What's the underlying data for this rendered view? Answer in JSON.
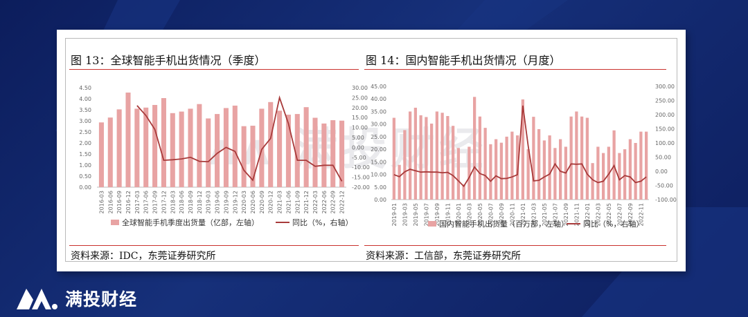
{
  "panel_left": {
    "title": "图 13：全球智能手机出货情况（季度）",
    "source": "资料来源：IDC，东莞证券研究所"
  },
  "panel_right": {
    "title": "图 14：国内智能手机出货情况（月度）",
    "source": "资料来源：工信部，东莞证券研究所"
  },
  "brand": {
    "name": "满投财经",
    "logo_icon": "mountain-m-logo-icon"
  },
  "colors": {
    "bar": "#e8a3a3",
    "line": "#a83a3a",
    "accent_rule": "#c9302c",
    "background": "#122a6f"
  },
  "chart_data": [
    {
      "type": "bar",
      "categories": [
        "2016-03",
        "2016-06",
        "2016-09",
        "2016-12",
        "2017-03",
        "2017-06",
        "2017-09",
        "2017-12",
        "2018-03",
        "2018-06",
        "2018-09",
        "2018-12",
        "2019-03",
        "2019-06",
        "2019-09",
        "2019-12",
        "2020-03",
        "2020-06",
        "2020-09",
        "2020-12",
        "2021-03",
        "2021-06",
        "2021-09",
        "2021-12",
        "2022-03",
        "2022-06",
        "2022-09",
        "2022-12"
      ],
      "x_tick_labels": [
        "2016-03",
        "2016-06",
        "2016-09",
        "2016-12",
        "2017-03",
        "2017-06",
        "2017-09",
        "2017-12",
        "2018-03",
        "2018-06",
        "2018-09",
        "2018-12",
        "2019-03",
        "2019-06",
        "2019-09",
        "2019-12",
        "2020-03",
        "2020-06",
        "2020-09",
        "2020-12",
        "2021-03",
        "2021-06",
        "2021-09",
        "2021-12",
        "2022-03",
        "2022-06",
        "2022-09",
        "2022-12"
      ],
      "series": [
        {
          "name": "全球智能手机季度出货量（亿部，左轴）",
          "type": "bar",
          "axis": "left",
          "values": [
            2.93,
            3.15,
            3.52,
            4.28,
            3.55,
            3.6,
            3.72,
            4.03,
            3.35,
            3.42,
            3.55,
            3.76,
            3.11,
            3.31,
            3.58,
            3.69,
            2.76,
            2.78,
            3.55,
            3.85,
            3.46,
            3.28,
            3.31,
            3.62,
            3.14,
            2.88,
            3.03,
            3.01
          ]
        },
        {
          "name": "同比（%，右轴）",
          "type": "line",
          "axis": "right",
          "values": [
            null,
            null,
            null,
            null,
            21.0,
            16.0,
            9.0,
            -6.5,
            -6.2,
            -5.8,
            -5.0,
            -7.0,
            -7.2,
            -3.0,
            0.0,
            -2.0,
            -11.5,
            -16.5,
            -1.0,
            4.5,
            25.0,
            12.0,
            -6.5,
            -6.5,
            -9.5,
            -9.0,
            -9.0,
            -17.0
          ]
        }
      ],
      "left_axis": {
        "ylim": [
          0,
          4.5
        ],
        "ticks": [
          "0.00",
          "0.50",
          "1.00",
          "1.50",
          "2.00",
          "2.50",
          "3.00",
          "3.50",
          "4.00",
          "4.50"
        ]
      },
      "right_axis": {
        "ylim": [
          -20,
          30
        ],
        "ticks": [
          "-20.00",
          "-15.00",
          "-10.00",
          "-5.00",
          "0.00",
          "5.00",
          "10.00",
          "15.00",
          "20.00",
          "25.00",
          "30.00"
        ]
      },
      "legend": {
        "placement": "bottom",
        "bar_label": "全球智能手机季度出货量（亿部，左轴）",
        "line_label": "同比（%，右轴）"
      }
    },
    {
      "type": "bar",
      "categories": [
        "2019-01",
        "2019-02",
        "2019-03",
        "2019-04",
        "2019-05",
        "2019-06",
        "2019-07",
        "2019-08",
        "2019-09",
        "2019-10",
        "2019-11",
        "2019-12",
        "2020-01",
        "2020-02",
        "2020-03",
        "2020-04",
        "2020-05",
        "2020-06",
        "2020-07",
        "2020-08",
        "2020-09",
        "2020-10",
        "2020-11",
        "2020-12",
        "2021-01",
        "2021-02",
        "2021-03",
        "2021-04",
        "2021-05",
        "2021-06",
        "2021-07",
        "2021-08",
        "2021-09",
        "2021-10",
        "2021-11",
        "2021-12",
        "2022-01",
        "2022-02",
        "2022-03",
        "2022-04",
        "2022-05",
        "2022-06",
        "2022-07",
        "2022-08",
        "2022-09",
        "2022-10",
        "2022-11",
        "2022-12"
      ],
      "x_tick_labels": [
        "2019-01",
        "2019-03",
        "2019-05",
        "2019-07",
        "2019-09",
        "2019-11",
        "2020-01",
        "2020-03",
        "2020-05",
        "2020-07",
        "2020-09",
        "2020-11",
        "2021-01",
        "2021-03",
        "2021-05",
        "2021-07",
        "2021-09",
        "2021-11",
        "2022-01",
        "2022-03",
        "2022-05",
        "2022-07",
        "2022-09",
        "2022-11"
      ],
      "series": [
        {
          "name": "国内智能手机出货量（百万部，左轴）",
          "type": "bar",
          "axis": "left",
          "values": [
            32.5,
            13.8,
            27.6,
            35.0,
            36.5,
            33.5,
            32.8,
            30.2,
            35.0,
            34.5,
            33.2,
            29.3,
            20.5,
            6.0,
            21.0,
            40.8,
            33.0,
            28.5,
            22.0,
            24.0,
            22.6,
            25.0,
            27.0,
            25.5,
            39.8,
            20.0,
            32.9,
            28.0,
            23.5,
            25.5,
            20.5,
            24.0,
            21.0,
            33.0,
            35.0,
            33.0,
            32.5,
            14.5,
            21.0,
            18.5,
            21.0,
            27.5,
            18.5,
            20.0,
            24.0,
            22.5,
            27.0,
            27.0
          ]
        },
        {
          "name": "同比（%，右轴）",
          "type": "line",
          "axis": "right",
          "values": [
            -12.0,
            -19.0,
            -2.0,
            7.0,
            2.0,
            -3.0,
            -2.0,
            -3.0,
            -3.0,
            -5.0,
            -4.0,
            -15.0,
            -34.0,
            -53.0,
            -22.0,
            15.0,
            -8.0,
            -15.0,
            -35.0,
            -16.0,
            -26.0,
            -25.0,
            -20.0,
            -12.0,
            232.0,
            90.0,
            -34.0,
            -32.0,
            -20.0,
            -10.0,
            26.0,
            0.0,
            -6.0,
            26.0,
            25.0,
            26.0,
            -10.0,
            -30.0,
            -40.0,
            -35.0,
            -10.0,
            20.0,
            -30.0,
            -15.0,
            -20.0,
            -40.0,
            -35.0,
            -20.0
          ]
        }
      ],
      "left_axis": {
        "ylim": [
          0,
          45
        ],
        "ticks": [
          "0.00",
          "5.00",
          "10.00",
          "15.00",
          "20.00",
          "25.00",
          "30.00",
          "35.00",
          "40.00",
          "45.00"
        ]
      },
      "right_axis": {
        "ylim": [
          -100,
          300
        ],
        "ticks": [
          "-100.00",
          "-50.00",
          "0.00",
          "50.00",
          "100.00",
          "150.00",
          "200.00",
          "250.00",
          "300.00"
        ]
      },
      "legend": {
        "placement": "bottom",
        "bar_label": "国内智能手机出货量（百万部，左轴）",
        "line_label": "同比（%，右轴）"
      }
    }
  ]
}
